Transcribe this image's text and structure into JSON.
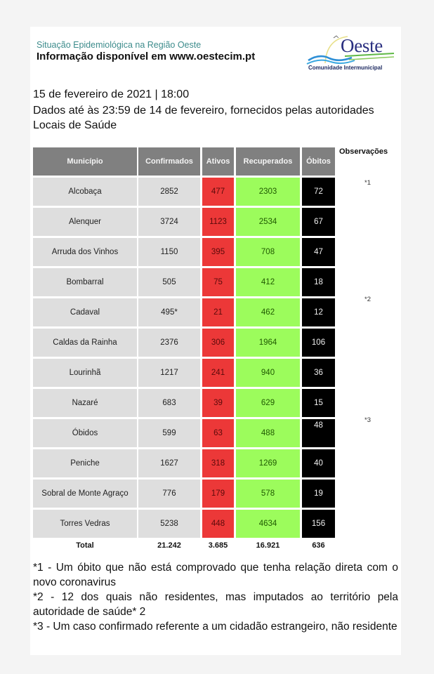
{
  "header": {
    "subtitle": "Situação Epidemiológica na Região Oeste",
    "title": "Informação disponível em www.oestecim.pt",
    "logo": {
      "word": "Oeste",
      "tagline": "Comunidade Intermunicipal",
      "icon": "oeste-logo-icon"
    }
  },
  "report": {
    "date": "15 de fevereiro de 2021 | 18:00",
    "description": "Dados até às 23:59 de 14 de fevereiro, fornecidos pelas autoridades Locais de Saúde"
  },
  "colors": {
    "header_bg": "#808080",
    "name_bg": "#dedede",
    "active_bg": "#ec3838",
    "recovered_bg": "#9cfc5c",
    "deaths_bg": "#000000"
  },
  "table": {
    "headers": [
      "Município",
      "Confirmados",
      "Ativos",
      "Recuperados",
      "Óbitos"
    ],
    "observations_header": "Observações",
    "rows": [
      {
        "municipio": "Alcobaça",
        "confirmados": "2852",
        "ativos": "477",
        "recuperados": "2303",
        "obitos": "72",
        "obs": "*1"
      },
      {
        "municipio": "Alenquer",
        "confirmados": "3724",
        "ativos": "1123",
        "recuperados": "2534",
        "obitos": "67",
        "obs": ""
      },
      {
        "municipio": "Arruda dos Vinhos",
        "confirmados": "1150",
        "ativos": "395",
        "recuperados": "708",
        "obitos": "47",
        "obs": ""
      },
      {
        "municipio": "Bombarral",
        "confirmados": "505",
        "ativos": "75",
        "recuperados": "412",
        "obitos": "18",
        "obs": ""
      },
      {
        "municipio": "Cadaval",
        "confirmados": "495*",
        "ativos": "21",
        "recuperados": "462",
        "obitos": "12",
        "obs": "*2"
      },
      {
        "municipio": "Caldas da Rainha",
        "confirmados": "2376",
        "ativos": "306",
        "recuperados": "1964",
        "obitos": "106",
        "obs": ""
      },
      {
        "municipio": "Lourinhã",
        "confirmados": "1217",
        "ativos": "241",
        "recuperados": "940",
        "obitos": "36",
        "obs": ""
      },
      {
        "municipio": "Nazaré",
        "confirmados": "683",
        "ativos": "39",
        "recuperados": "629",
        "obitos": "15",
        "obs": ""
      },
      {
        "municipio": "Óbidos",
        "confirmados": "599",
        "ativos": "63",
        "recuperados": "488",
        "obitos": "48",
        "obs": "*3"
      },
      {
        "municipio": "Peniche",
        "confirmados": "1627",
        "ativos": "318",
        "recuperados": "1269",
        "obitos": "40",
        "obs": ""
      },
      {
        "municipio": "Sobral de Monte Agraço",
        "confirmados": "776",
        "ativos": "179",
        "recuperados": "578",
        "obitos": "19",
        "obs": ""
      },
      {
        "municipio": "Torres Vedras",
        "confirmados": "5238",
        "ativos": "448",
        "recuperados": "4634",
        "obitos": "156",
        "obs": ""
      }
    ],
    "totals": {
      "label": "Total",
      "confirmados": "21.242",
      "ativos": "3.685",
      "recuperados": "16.921",
      "obitos": "636"
    }
  },
  "notes": [
    "*1 - Um óbito que não está comprovado que tenha relação direta com o novo coronavirus",
    "*2 - 12 dos quais não residentes, mas imputados ao território pela autoridade de saúde* 2",
    "*3 - Um caso confirmado referente a um cidadão estrangeiro, não residente"
  ]
}
